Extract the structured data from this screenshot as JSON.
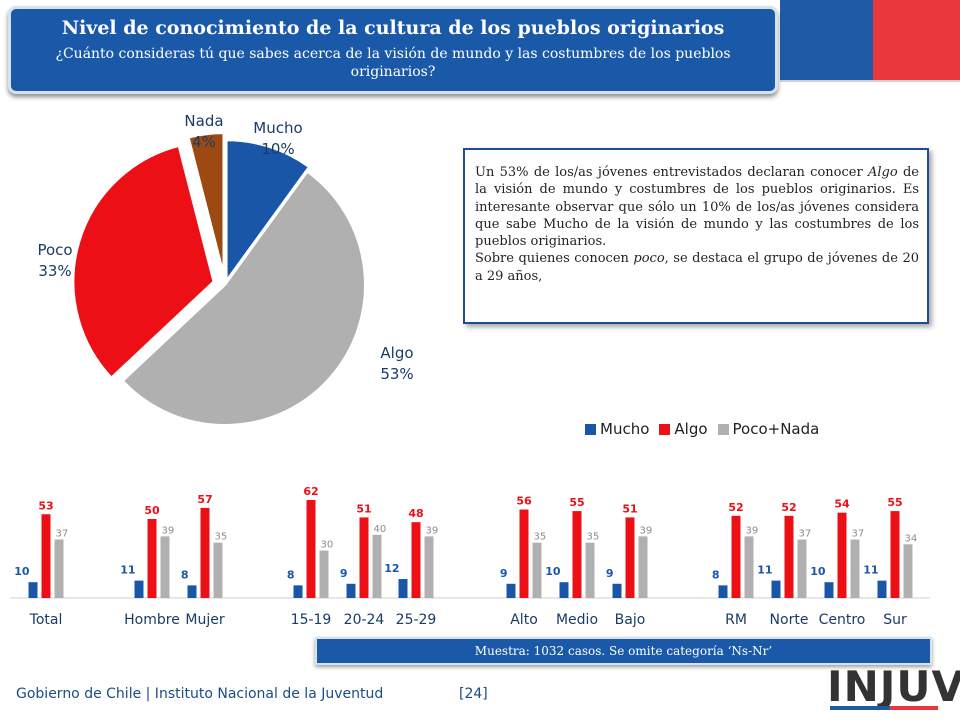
{
  "header": {
    "title": "Nivel de conocimiento de la cultura de los pueblos originarios",
    "subtitle": "¿Cuánto consideras tú que sabes acerca de la visión de mundo y las costumbres de los pueblos originarios?"
  },
  "note": {
    "p1_a": "Un 53% de los/as jóvenes entrevistados declaran conocer ",
    "p1_em": "Algo",
    "p1_b": "  de la visión de mundo y costumbres de los pueblos originarios. Es interesante observar que sólo un 10% de los/as jóvenes considera que sabe Mucho de la visión de mundo y las costumbres de los pueblos originarios.",
    "p2_a": "Sobre quienes conocen ",
    "p2_em": "poco",
    "p2_b": ", se destaca el grupo de jóvenes de 20 a 29 años,"
  },
  "colors": {
    "mucho": "#1a56a8",
    "algo": "#ec0f16",
    "poco_nada": "#b0b0b0",
    "nada": "#9c4a12",
    "brand_blue": "#1a59a7",
    "brand_red": "#e8383d"
  },
  "chart_data": [
    {
      "type": "pie",
      "slices": [
        {
          "label": "Mucho",
          "value": 10,
          "value_label": "10%",
          "color": "#1a56a8"
        },
        {
          "label": "Algo",
          "value": 53,
          "value_label": "53%",
          "color": "#b0b0b0"
        },
        {
          "label": "Poco",
          "value": 33,
          "value_label": "33%",
          "color": "#ec0f16"
        },
        {
          "label": "Nada",
          "value": 4,
          "value_label": "4%",
          "color": "#9c4a12"
        }
      ]
    },
    {
      "type": "bar",
      "legend_position": "top-right",
      "categories": [
        "Total",
        "Hombre",
        "Mujer",
        "15-19",
        "20-24",
        "25-29",
        "Alto",
        "Medio",
        "Bajo",
        "RM",
        "Norte",
        "Centro",
        "Sur"
      ],
      "series": [
        {
          "name": "Mucho",
          "color": "#1a56a8",
          "values": [
            10,
            11,
            8,
            8,
            9,
            12,
            9,
            10,
            9,
            8,
            11,
            10,
            11
          ]
        },
        {
          "name": "Algo",
          "color": "#ec0f16",
          "values": [
            53,
            50,
            57,
            62,
            51,
            48,
            56,
            55,
            51,
            52,
            52,
            54,
            55
          ]
        },
        {
          "name": "Poco+Nada",
          "color": "#b0b0b0",
          "values": [
            37,
            39,
            35,
            30,
            40,
            39,
            35,
            35,
            39,
            39,
            37,
            37,
            34
          ]
        }
      ]
    }
  ],
  "sample_note": "Muestra: 1032 casos. Se omite categoría ‘Ns-Nr’",
  "footer": {
    "text": "Gobierno de Chile | Instituto Nacional de la Juventud",
    "page": "[24]"
  },
  "logo": {
    "text": "INJUV"
  }
}
